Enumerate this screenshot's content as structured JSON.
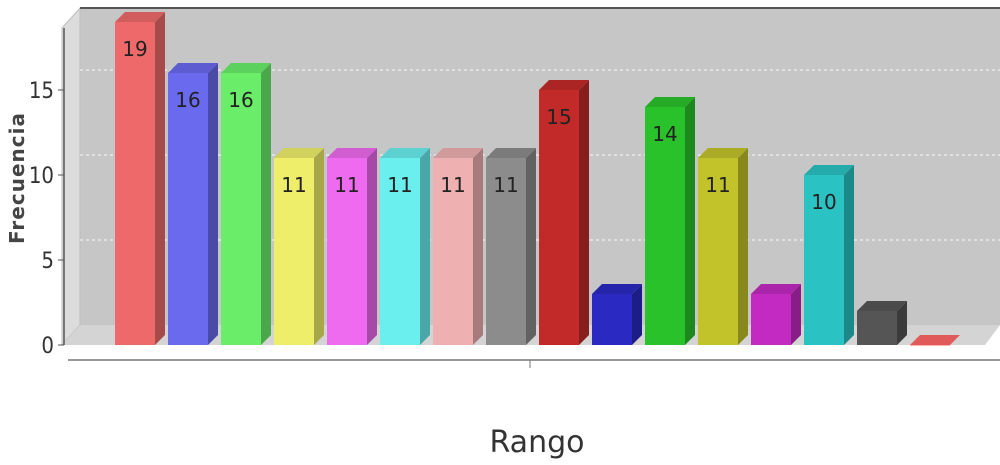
{
  "chart_data": {
    "type": "bar",
    "xlabel": "Rango",
    "ylabel": "Frecuencia",
    "ylim": [
      0,
      20
    ],
    "yticks": [
      "0",
      "5",
      "10",
      "15"
    ],
    "values": [
      19,
      16,
      16,
      11,
      11,
      11,
      11,
      11,
      15,
      3,
      14,
      11,
      3,
      10,
      2,
      0
    ],
    "data_labels": [
      "19",
      "16",
      "16",
      "11",
      "11",
      "11",
      "11",
      "11",
      "15",
      "",
      "14",
      "11",
      "",
      "10",
      "",
      ""
    ],
    "colors": [
      "#ee6a6a",
      "#6a6aee",
      "#6aee6a",
      "#eeee6a",
      "#ee6aee",
      "#6aeeee",
      "#eeb0b0",
      "#8c8c8c",
      "#c22a2a",
      "#2a2ac2",
      "#2ac22a",
      "#c2c22a",
      "#c22ac2",
      "#2ac2c2",
      "#555555",
      "#ff6666"
    ],
    "grid": true,
    "style": "3d"
  }
}
